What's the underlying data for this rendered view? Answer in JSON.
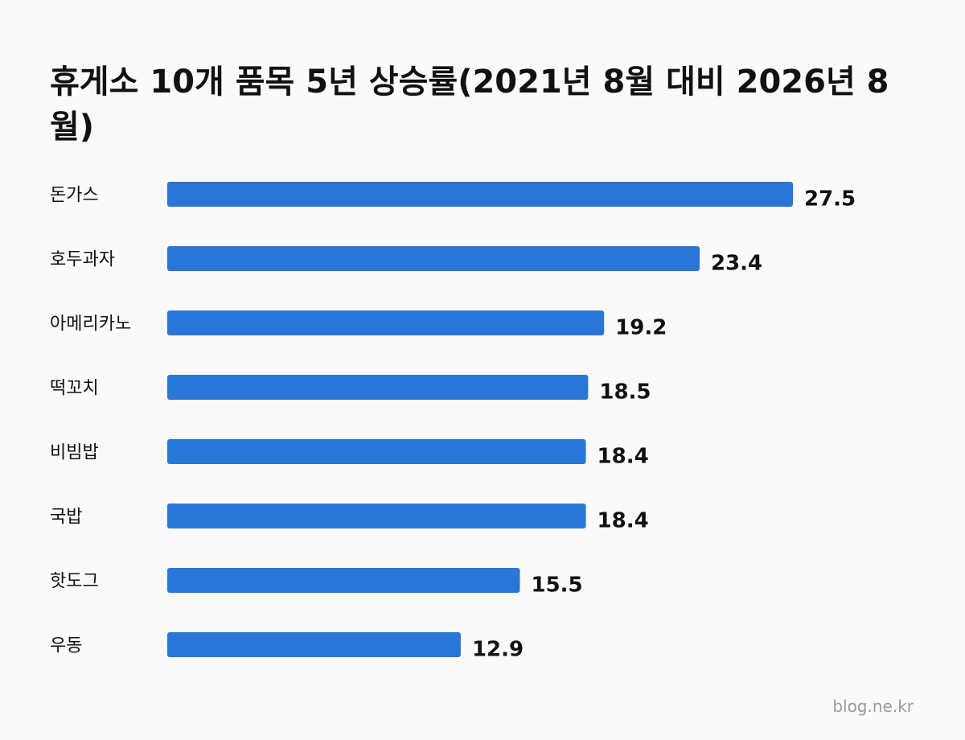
{
  "chart_data": {
    "type": "bar",
    "orientation": "horizontal",
    "title": "휴게소 10개 품목 5년 상승률(2021년 8월 대비 2026년 8월)",
    "categories": [
      "돈가스",
      "호두과자",
      "아메리카노",
      "떡꼬치",
      "비빔밥",
      "국밥",
      "핫도그",
      "우동"
    ],
    "values": [
      27.5,
      23.4,
      19.2,
      18.5,
      18.4,
      18.4,
      15.5,
      12.9
    ],
    "value_labels": [
      "27.5",
      "23.4",
      "19.2",
      "18.5",
      "18.4",
      "18.4",
      "15.5",
      "12.9"
    ],
    "xlim": [
      0,
      27.5
    ],
    "grid": false,
    "legend": "none",
    "bar_color": "#2a76d6"
  },
  "watermark": "blog.ne.kr"
}
